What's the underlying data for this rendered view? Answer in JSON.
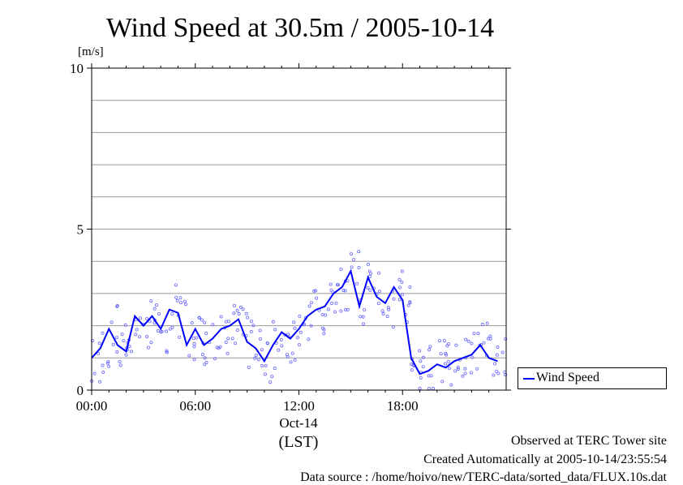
{
  "chart_data": {
    "type": "line",
    "title": "Wind Speed at 30.5m / 2005-10-14",
    "ylabel": "[m/s]",
    "ylim": [
      0,
      10
    ],
    "xlim_hours": [
      0,
      24
    ],
    "yticks": [
      {
        "value": 0,
        "label": "0"
      },
      {
        "value": 5,
        "label": "5"
      },
      {
        "value": 10,
        "label": "10"
      }
    ],
    "xticks": [
      {
        "hour": 0,
        "label": "00:00"
      },
      {
        "hour": 6,
        "label": "06:00"
      },
      {
        "hour": 12,
        "label": "12:00"
      },
      {
        "hour": 18,
        "label": "18:00"
      }
    ],
    "date_label": "Oct-14",
    "timezone_label": "(LST)",
    "grid": true,
    "legend": "right",
    "series": [
      {
        "name": "Wind Speed",
        "style": "line+scatter",
        "hours": [
          0,
          0.5,
          1,
          1.5,
          2,
          2.5,
          3,
          3.5,
          4,
          4.5,
          5,
          5.5,
          6,
          6.5,
          7,
          7.5,
          8,
          8.5,
          9,
          9.5,
          10,
          10.5,
          11,
          11.5,
          12,
          12.5,
          13,
          13.5,
          14,
          14.5,
          15,
          15.5,
          16,
          16.5,
          17,
          17.5,
          18,
          18.5,
          19,
          19.5,
          20,
          20.5,
          21,
          21.5,
          22,
          22.5,
          23,
          23.5
        ],
        "values": [
          1.0,
          1.3,
          1.9,
          1.4,
          1.2,
          2.3,
          2.0,
          2.3,
          1.9,
          2.5,
          2.4,
          1.4,
          1.9,
          1.4,
          1.6,
          1.9,
          2.0,
          2.2,
          1.5,
          1.3,
          0.9,
          1.4,
          1.8,
          1.6,
          1.9,
          2.3,
          2.5,
          2.6,
          3.0,
          3.2,
          3.7,
          2.6,
          3.5,
          2.9,
          2.7,
          3.2,
          2.8,
          1.0,
          0.5,
          0.6,
          0.8,
          0.7,
          0.9,
          1.0,
          1.1,
          1.4,
          1.0,
          0.9
        ]
      }
    ]
  },
  "legend": {
    "label": "Wind Speed"
  },
  "footer": {
    "line1": "Observed at TERC Tower site",
    "line2": "Created Automatically at 2005-10-14/23:55:54",
    "line3": "Data source : /home/hoivo/new/TERC-data/sorted_data/FLUX.10s.dat"
  },
  "colors": {
    "series": "#0000ff",
    "scatter": "#6a6aff",
    "grid": "#999999"
  }
}
